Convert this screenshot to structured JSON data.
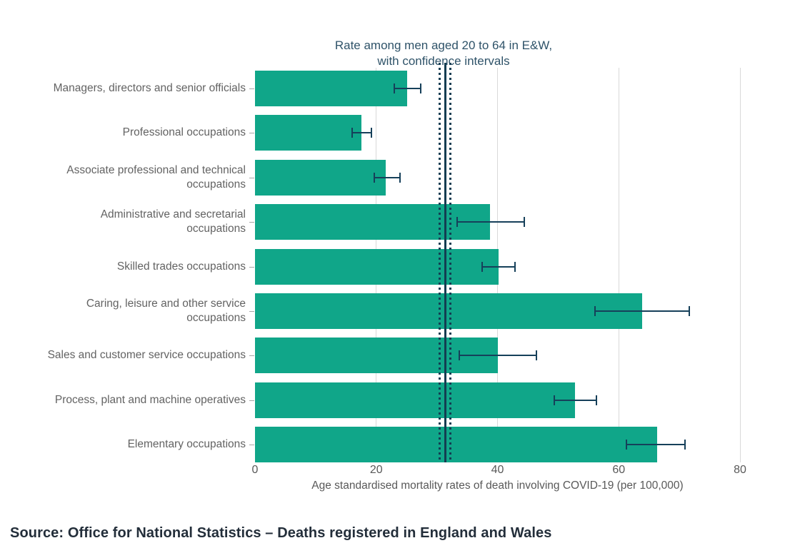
{
  "chart_data": {
    "type": "bar",
    "orientation": "horizontal",
    "title": "Rate among men aged 20 to 64 in E&W,\nwith confidence intervals",
    "xlabel": "Age standardised mortality rates of death involving COVID-19 (per 100,000)",
    "xlim": [
      0,
      80
    ],
    "x_ticks": [
      0,
      20,
      40,
      60,
      80
    ],
    "grid": "vertical",
    "legend": "none",
    "bar_color": "#10a689",
    "error_color": "#16405a",
    "grid_color": "#d9d9d9",
    "categories": [
      "Managers, directors and senior officials",
      "Professional occupations",
      "Associate professional and technical\noccupations",
      "Administrative and secretarial\noccupations",
      "Skilled trades occupations",
      "Caring, leisure and other service\noccupations",
      "Sales and customer service occupations",
      "Process, plant and machine operatives",
      "Elementary occupations"
    ],
    "values": [
      25.1,
      17.6,
      21.6,
      38.8,
      40.2,
      63.9,
      40.1,
      52.8,
      66.3
    ],
    "ci_low": [
      22.8,
      15.9,
      19.5,
      33.2,
      37.4,
      56.0,
      33.6,
      49.2,
      61.2
    ],
    "ci_high": [
      27.5,
      19.3,
      24.0,
      44.5,
      43.0,
      71.7,
      46.5,
      56.4,
      71.1
    ],
    "reference_line": {
      "value": 31.4,
      "ci_low": 30.5,
      "ci_high": 32.2,
      "color": "#143d52"
    }
  },
  "source": "Source: Office for National Statistics – Deaths registered in England and Wales"
}
